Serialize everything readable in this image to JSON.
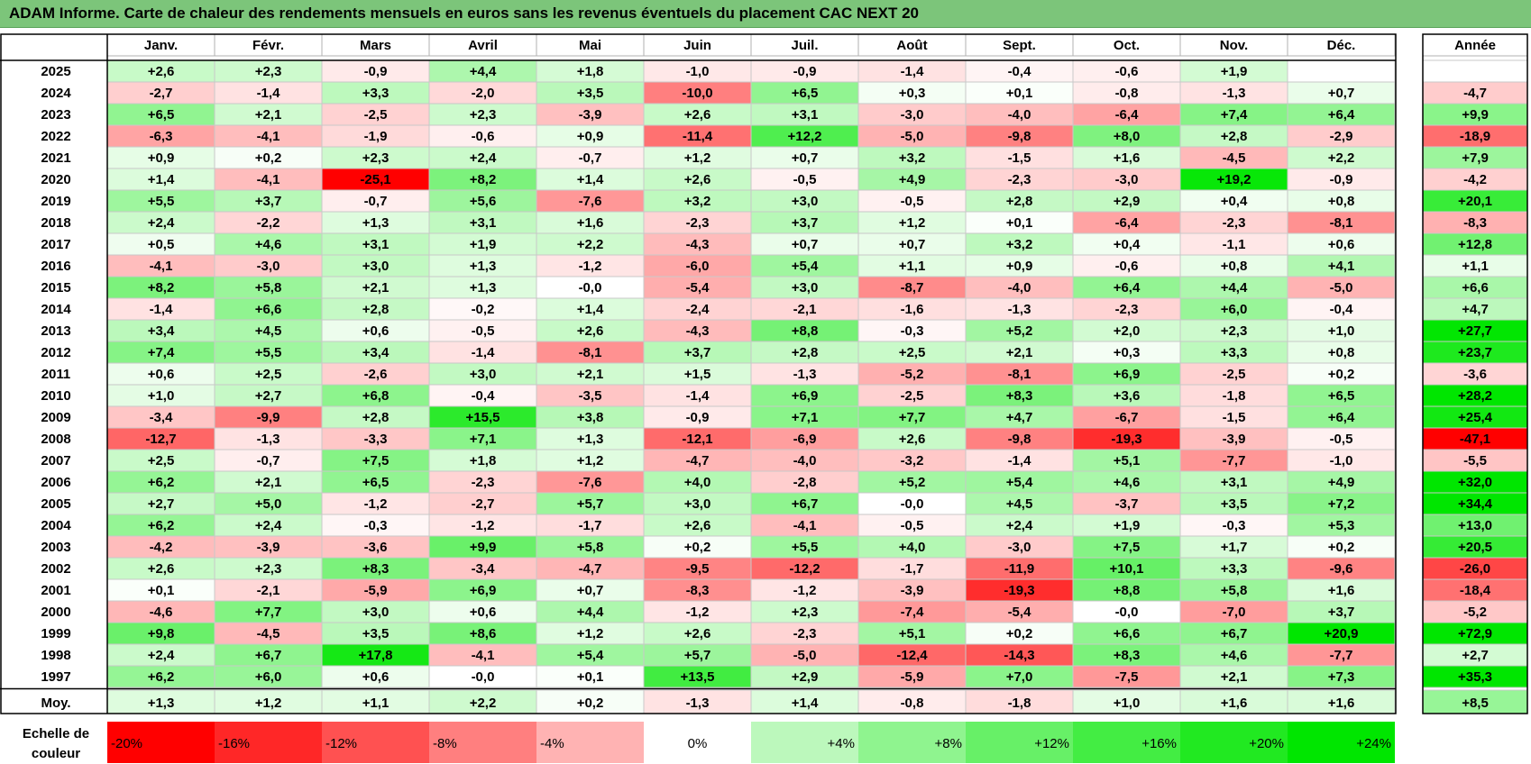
{
  "title": "ADAM Informe. Carte de chaleur des rendements mensuels en euros sans les revenus éventuels du placement CAC NEXT 20",
  "chart_data": {
    "type": "heatmap",
    "months": [
      "Janv.",
      "Févr.",
      "Mars",
      "Avril",
      "Mai",
      "Juin",
      "Juil.",
      "Août",
      "Sept.",
      "Oct.",
      "Nov.",
      "Déc."
    ],
    "year_header": "Année",
    "years": [
      "2025",
      "2024",
      "2023",
      "2022",
      "2021",
      "2020",
      "2019",
      "2018",
      "2017",
      "2016",
      "2015",
      "2014",
      "2013",
      "2012",
      "2011",
      "2010",
      "2009",
      "2008",
      "2007",
      "2006",
      "2005",
      "2004",
      "2003",
      "2002",
      "2001",
      "2000",
      "1999",
      "1998",
      "1997"
    ],
    "values": [
      [
        "+2,6",
        "+2,3",
        "-0,9",
        "+4,4",
        "+1,8",
        "-1,0",
        "-0,9",
        "-1,4",
        "-0,4",
        "-0,6",
        "+1,9",
        ""
      ],
      [
        "-2,7",
        "-1,4",
        "+3,3",
        "-2,0",
        "+3,5",
        "-10,0",
        "+6,5",
        "+0,3",
        "+0,1",
        "-0,8",
        "-1,3",
        "+0,7"
      ],
      [
        "+6,5",
        "+2,1",
        "-2,5",
        "+2,3",
        "-3,9",
        "+2,6",
        "+3,1",
        "-3,0",
        "-4,0",
        "-6,4",
        "+7,4",
        "+6,4"
      ],
      [
        "-6,3",
        "-4,1",
        "-1,9",
        "-0,6",
        "+0,9",
        "-11,4",
        "+12,2",
        "-5,0",
        "-9,8",
        "+8,0",
        "+2,8",
        "-2,9"
      ],
      [
        "+0,9",
        "+0,2",
        "+2,3",
        "+2,4",
        "-0,7",
        "+1,2",
        "+0,7",
        "+3,2",
        "-1,5",
        "+1,6",
        "-4,5",
        "+2,2"
      ],
      [
        "+1,4",
        "-4,1",
        "-25,1",
        "+8,2",
        "+1,4",
        "+2,6",
        "-0,5",
        "+4,9",
        "-2,3",
        "-3,0",
        "+19,2",
        "-0,9"
      ],
      [
        "+5,5",
        "+3,7",
        "-0,7",
        "+5,6",
        "-7,6",
        "+3,2",
        "+3,0",
        "-0,5",
        "+2,8",
        "+2,9",
        "+0,4",
        "+0,8"
      ],
      [
        "+2,4",
        "-2,2",
        "+1,3",
        "+3,1",
        "+1,6",
        "-2,3",
        "+3,7",
        "+1,2",
        "+0,1",
        "-6,4",
        "-2,3",
        "-8,1"
      ],
      [
        "+0,5",
        "+4,6",
        "+3,1",
        "+1,9",
        "+2,2",
        "-4,3",
        "+0,7",
        "+0,7",
        "+3,2",
        "+0,4",
        "-1,1",
        "+0,6"
      ],
      [
        "-4,1",
        "-3,0",
        "+3,0",
        "+1,3",
        "-1,2",
        "-6,0",
        "+5,4",
        "+1,1",
        "+0,9",
        "-0,6",
        "+0,8",
        "+4,1"
      ],
      [
        "+8,2",
        "+5,8",
        "+2,1",
        "+1,3",
        "-0,0",
        "-5,4",
        "+3,0",
        "-8,7",
        "-4,0",
        "+6,4",
        "+4,4",
        "-5,0"
      ],
      [
        "-1,4",
        "+6,6",
        "+2,8",
        "-0,2",
        "+1,4",
        "-2,4",
        "-2,1",
        "-1,6",
        "-1,3",
        "-2,3",
        "+6,0",
        "-0,4"
      ],
      [
        "+3,4",
        "+4,5",
        "+0,6",
        "-0,5",
        "+2,6",
        "-4,3",
        "+8,8",
        "-0,3",
        "+5,2",
        "+2,0",
        "+2,3",
        "+1,0"
      ],
      [
        "+7,4",
        "+5,5",
        "+3,4",
        "-1,4",
        "-8,1",
        "+3,7",
        "+2,8",
        "+2,5",
        "+2,1",
        "+0,3",
        "+3,3",
        "+0,8"
      ],
      [
        "+0,6",
        "+2,5",
        "-2,6",
        "+3,0",
        "+2,1",
        "+1,5",
        "-1,3",
        "-5,2",
        "-8,1",
        "+6,9",
        "-2,5",
        "+0,2"
      ],
      [
        "+1,0",
        "+2,7",
        "+6,8",
        "-0,4",
        "-3,5",
        "-1,4",
        "+6,9",
        "-2,5",
        "+8,3",
        "+3,6",
        "-1,8",
        "+6,5"
      ],
      [
        "-3,4",
        "-9,9",
        "+2,8",
        "+15,5",
        "+3,8",
        "-0,9",
        "+7,1",
        "+7,7",
        "+4,7",
        "-6,7",
        "-1,5",
        "+6,4"
      ],
      [
        "-12,7",
        "-1,3",
        "-3,3",
        "+7,1",
        "+1,3",
        "-12,1",
        "-6,9",
        "+2,6",
        "-9,8",
        "-19,3",
        "-3,9",
        "-0,5"
      ],
      [
        "+2,5",
        "-0,7",
        "+7,5",
        "+1,8",
        "+1,2",
        "-4,7",
        "-4,0",
        "-3,2",
        "-1,4",
        "+5,1",
        "-7,7",
        "-1,0"
      ],
      [
        "+6,2",
        "+2,1",
        "+6,5",
        "-2,3",
        "-7,6",
        "+4,0",
        "-2,8",
        "+5,2",
        "+5,4",
        "+4,6",
        "+3,1",
        "+4,9"
      ],
      [
        "+2,7",
        "+5,0",
        "-1,2",
        "-2,7",
        "+5,7",
        "+3,0",
        "+6,7",
        "-0,0",
        "+4,5",
        "-3,7",
        "+3,5",
        "+7,2"
      ],
      [
        "+6,2",
        "+2,4",
        "-0,3",
        "-1,2",
        "-1,7",
        "+2,6",
        "-4,1",
        "-0,5",
        "+2,4",
        "+1,9",
        "-0,3",
        "+5,3"
      ],
      [
        "-4,2",
        "-3,9",
        "-3,6",
        "+9,9",
        "+5,8",
        "+0,2",
        "+5,5",
        "+4,0",
        "-3,0",
        "+7,5",
        "+1,7",
        "+0,2"
      ],
      [
        "+2,6",
        "+2,3",
        "+8,3",
        "-3,4",
        "-4,7",
        "-9,5",
        "-12,2",
        "-1,7",
        "-11,9",
        "+10,1",
        "+3,3",
        "-9,6"
      ],
      [
        "+0,1",
        "-2,1",
        "-5,9",
        "+6,9",
        "+0,7",
        "-8,3",
        "-1,2",
        "-3,9",
        "-19,3",
        "+8,8",
        "+5,8",
        "+1,6"
      ],
      [
        "-4,6",
        "+7,7",
        "+3,0",
        "+0,6",
        "+4,4",
        "-1,2",
        "+2,3",
        "-7,4",
        "-5,4",
        "-0,0",
        "-7,0",
        "+3,7"
      ],
      [
        "+9,8",
        "-4,5",
        "+3,5",
        "+8,6",
        "+1,2",
        "+2,6",
        "-2,3",
        "+5,1",
        "+0,2",
        "+6,6",
        "+6,7",
        "+20,9"
      ],
      [
        "+2,4",
        "+6,7",
        "+17,8",
        "-4,1",
        "+5,4",
        "+5,7",
        "-5,0",
        "-12,4",
        "-14,3",
        "+8,3",
        "+4,6",
        "-7,7"
      ],
      [
        "+6,2",
        "+6,0",
        "+0,6",
        "-0,0",
        "+0,1",
        "+13,5",
        "+2,9",
        "-5,9",
        "+7,0",
        "-7,5",
        "+2,1",
        "+7,3"
      ]
    ],
    "annual": [
      "",
      "-4,7",
      "+9,9",
      "-18,9",
      "+7,9",
      "-4,2",
      "+20,1",
      "-8,3",
      "+12,8",
      "+1,1",
      "+6,6",
      "+4,7",
      "+27,7",
      "+23,7",
      "-3,6",
      "+28,2",
      "+25,4",
      "-47,1",
      "-5,5",
      "+32,0",
      "+34,4",
      "+13,0",
      "+20,5",
      "-26,0",
      "-18,4",
      "-5,2",
      "+72,9",
      "+2,7",
      "+35,3"
    ],
    "average_label": "Moy.",
    "average": [
      "+1,3",
      "+1,2",
      "+1,1",
      "+2,2",
      "+0,2",
      "-1,3",
      "+1,4",
      "-0,8",
      "-1,8",
      "+1,0",
      "+1,6",
      "+1,6"
    ],
    "average_annual": "+8,5",
    "scale_label_line1": "Echelle de",
    "scale_label_line2": "couleur",
    "scale_labels": [
      "-20%",
      "-16%",
      "-12%",
      "-8%",
      "-4%",
      "0%",
      "+4%",
      "+8%",
      "+12%",
      "+16%",
      "+20%",
      "+24%"
    ],
    "scale_values": [
      -20,
      -16,
      -12,
      -8,
      -4,
      0,
      4,
      8,
      12,
      16,
      20,
      24
    ],
    "colors": {
      "negative_max": "#ff0000",
      "neutral": "#ffffff",
      "positive_max": "#00e600"
    }
  }
}
